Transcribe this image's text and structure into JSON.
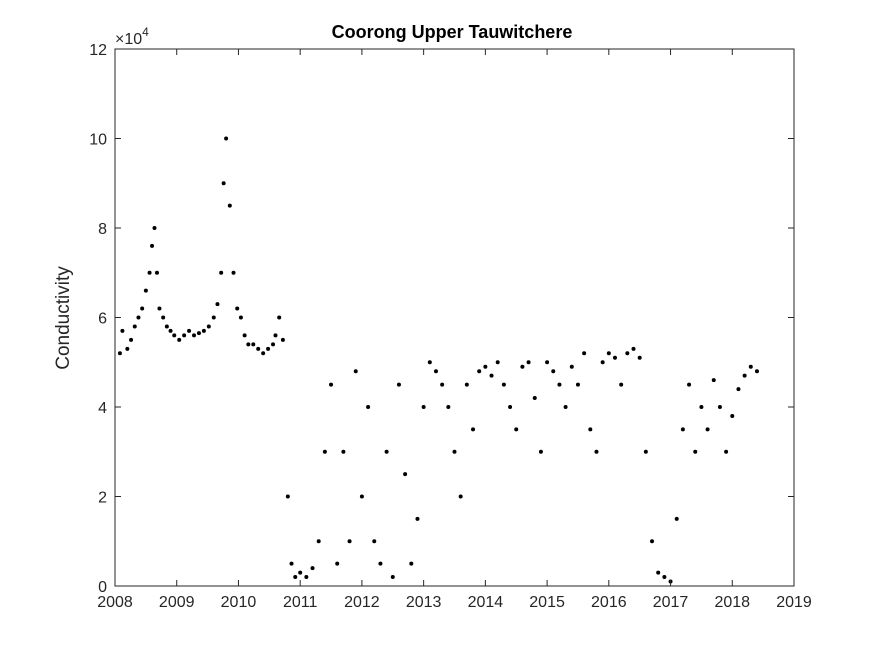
{
  "chart_data": {
    "type": "scatter",
    "title": "Coorong Upper Tauwitchere",
    "ylabel": "Conductivity",
    "xlabel": "",
    "xlim": [
      2008,
      2019
    ],
    "ylim": [
      0,
      120000
    ],
    "xticks": [
      "2008",
      "2009",
      "2010",
      "2011",
      "2012",
      "2013",
      "2014",
      "2015",
      "2016",
      "2017",
      "2018",
      "2019"
    ],
    "yticks": [
      "0",
      "2",
      "4",
      "6",
      "8",
      "10",
      "12"
    ],
    "y_exponent_label": "×10",
    "y_exponent_power": "4",
    "grid": false,
    "marker_color": "#000000",
    "series": [
      {
        "x": [
          2008.08,
          2008.12,
          2008.2,
          2008.26,
          2008.32,
          2008.38,
          2008.44,
          2008.5,
          2008.56,
          2008.6,
          2008.64,
          2008.68,
          2008.72,
          2008.78,
          2008.84,
          2008.9,
          2008.96,
          2009.04,
          2009.12,
          2009.2,
          2009.28,
          2009.36,
          2009.44,
          2009.52,
          2009.6,
          2009.66,
          2009.72,
          2009.76,
          2009.8,
          2009.86,
          2009.92,
          2009.98,
          2010.04,
          2010.1,
          2010.16,
          2010.24,
          2010.32,
          2010.4,
          2010.48,
          2010.56,
          2010.6,
          2010.66,
          2010.72,
          2010.8,
          2010.86,
          2010.92,
          2011.0,
          2011.1,
          2011.2,
          2011.3,
          2011.4,
          2011.5,
          2011.6,
          2011.7,
          2011.8,
          2011.9,
          2012.0,
          2012.1,
          2012.2,
          2012.3,
          2012.4,
          2012.5,
          2012.6,
          2012.7,
          2012.8,
          2012.9,
          2013.0,
          2013.1,
          2013.2,
          2013.3,
          2013.4,
          2013.5,
          2013.6,
          2013.7,
          2013.8,
          2013.9,
          2014.0,
          2014.1,
          2014.2,
          2014.3,
          2014.4,
          2014.5,
          2014.6,
          2014.7,
          2014.8,
          2014.9,
          2015.0,
          2015.1,
          2015.2,
          2015.3,
          2015.4,
          2015.5,
          2015.6,
          2015.7,
          2015.8,
          2015.9,
          2016.0,
          2016.1,
          2016.2,
          2016.3,
          2016.4,
          2016.5,
          2016.6,
          2016.7,
          2016.8,
          2016.9,
          2017.0,
          2017.1,
          2017.2,
          2017.3,
          2017.4,
          2017.5,
          2017.6,
          2017.7,
          2017.8,
          2017.9,
          2018.0,
          2018.1,
          2018.2,
          2018.3,
          2018.4
        ],
        "y": [
          52000,
          57000,
          53000,
          55000,
          58000,
          60000,
          62000,
          66000,
          70000,
          76000,
          80000,
          70000,
          62000,
          60000,
          58000,
          57000,
          56000,
          55000,
          56000,
          57000,
          56000,
          56500,
          57000,
          58000,
          60000,
          63000,
          70000,
          90000,
          100000,
          85000,
          70000,
          62000,
          60000,
          56000,
          54000,
          54000,
          53000,
          52000,
          53000,
          54000,
          56000,
          60000,
          55000,
          20000,
          5000,
          2000,
          3000,
          2000,
          4000,
          10000,
          30000,
          45000,
          5000,
          30000,
          10000,
          48000,
          20000,
          40000,
          10000,
          5000,
          30000,
          2000,
          45000,
          25000,
          5000,
          15000,
          40000,
          50000,
          48000,
          45000,
          40000,
          30000,
          20000,
          45000,
          35000,
          48000,
          49000,
          47000,
          50000,
          45000,
          40000,
          35000,
          49000,
          50000,
          42000,
          30000,
          50000,
          48000,
          45000,
          40000,
          49000,
          45000,
          52000,
          35000,
          30000,
          50000,
          52000,
          51000,
          45000,
          52000,
          53000,
          51000,
          30000,
          10000,
          3000,
          2000,
          1000,
          15000,
          35000,
          45000,
          30000,
          40000,
          35000,
          46000,
          40000,
          30000,
          38000,
          44000,
          47000,
          49000,
          48000
        ]
      }
    ]
  }
}
